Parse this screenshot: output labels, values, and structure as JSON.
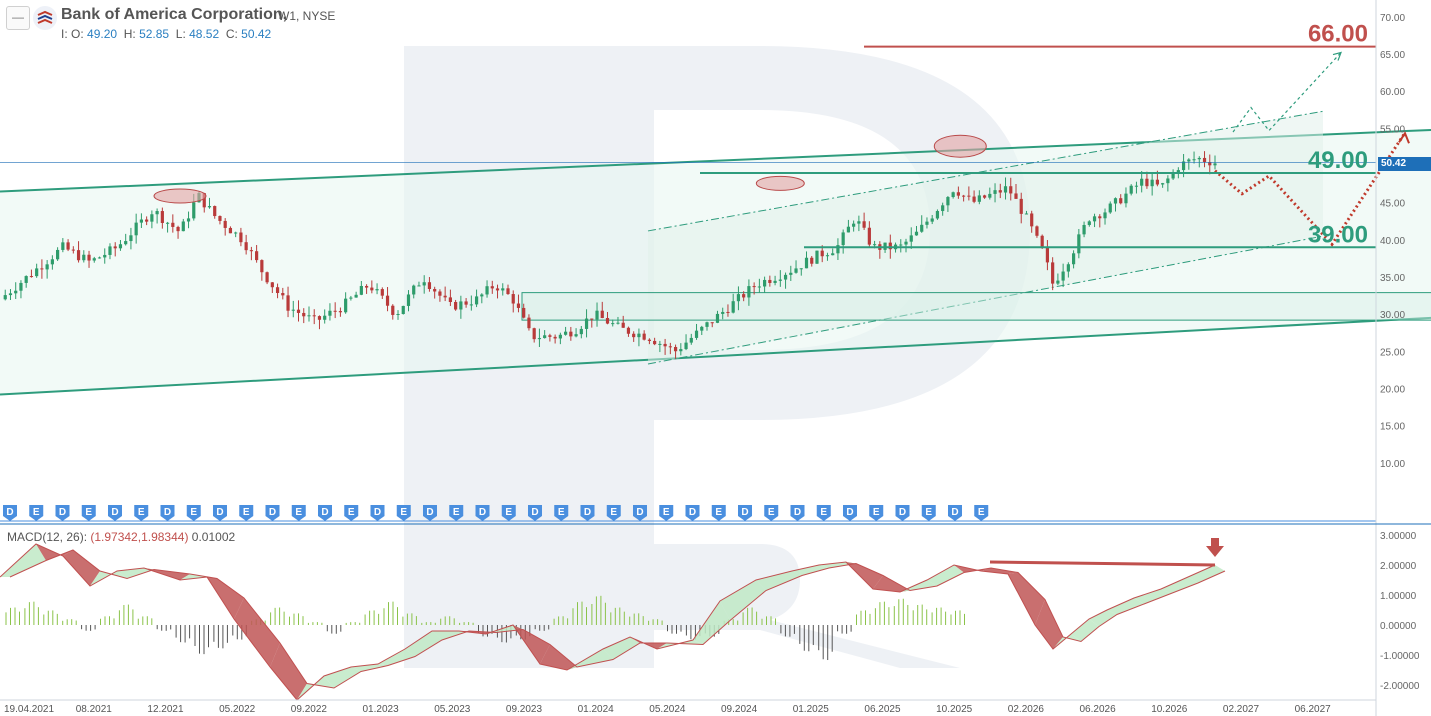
{
  "header": {
    "title": "Bank of America Corporation,",
    "timeframe_exchange": "W1, NYSE",
    "ohlc": {
      "o_label": "I: O:",
      "o": "49.20",
      "h_label": "H:",
      "h": "52.85",
      "l_label": "L:",
      "l": "48.52",
      "c_label": "C:",
      "c": "50.42"
    },
    "menu_icon": "minus-icon",
    "logo_icon": "bank-of-america-flag-icon"
  },
  "colors": {
    "up": "#2e9c6b",
    "down": "#b93a3a",
    "channel": "#2e9c7d",
    "resistance": "#c0504d",
    "level_text": "#2e9c7d",
    "last_price_tag": "#1e6fb8",
    "macd_up_fill": "#bfe9c6",
    "macd_down_fill": "#c05656",
    "event_marker": "#4a8fdf"
  },
  "chart_data": [
    {
      "type": "candlestick",
      "title": "Bank of America Corporation, W1, NYSE",
      "ylim": [
        5,
        72
      ],
      "y_ticks": [
        "70.00",
        "65.00",
        "60.00",
        "55.00",
        "50.00",
        "45.00",
        "40.00",
        "35.00",
        "30.00",
        "25.00",
        "20.00",
        "15.00",
        "10.00"
      ],
      "x_tick_labels": [
        "19.04.2021",
        "08.2021",
        "12.2021",
        "05.2022",
        "09.2022",
        "01.2023",
        "05.2023",
        "09.2023",
        "01.2024",
        "05.2024",
        "09.2024",
        "01.2025",
        "06.2025",
        "10.2025",
        "02.2026",
        "06.2026",
        "10.2026",
        "02.2027",
        "06.2027"
      ],
      "price_path": [
        [
          0,
          32
        ],
        [
          0.04,
          36
        ],
        [
          0.07,
          39
        ],
        [
          0.1,
          37
        ],
        [
          0.13,
          39
        ],
        [
          0.17,
          44
        ],
        [
          0.2,
          41
        ],
        [
          0.22,
          46
        ],
        [
          0.24,
          43
        ],
        [
          0.27,
          40
        ],
        [
          0.29,
          36
        ],
        [
          0.32,
          31
        ],
        [
          0.35,
          29
        ],
        [
          0.38,
          31
        ],
        [
          0.41,
          34
        ],
        [
          0.44,
          30
        ],
        [
          0.47,
          35
        ],
        [
          0.5,
          31
        ],
        [
          0.53,
          32
        ],
        [
          0.55,
          34
        ],
        [
          0.57,
          32
        ],
        [
          0.59,
          27
        ],
        [
          0.62,
          27
        ],
        [
          0.64,
          28
        ],
        [
          0.66,
          30
        ],
        [
          0.69,
          28
        ],
        [
          0.72,
          27
        ],
        [
          0.75,
          25
        ],
        [
          0.78,
          28
        ],
        [
          0.81,
          31
        ],
        [
          0.84,
          34
        ],
        [
          0.88,
          36
        ],
        [
          0.91,
          38
        ],
        [
          0.93,
          39
        ],
        [
          0.95,
          43
        ],
        [
          0.97,
          39
        ],
        [
          1.0,
          39
        ],
        [
          1.02,
          41
        ],
        [
          1.04,
          44
        ],
        [
          1.06,
          47
        ],
        [
          1.08,
          45
        ],
        [
          1.1,
          46
        ],
        [
          1.12,
          47
        ],
        [
          1.14,
          43
        ],
        [
          1.16,
          38
        ],
        [
          1.17,
          34
        ],
        [
          1.19,
          38
        ],
        [
          1.21,
          43
        ],
        [
          1.23,
          44
        ],
        [
          1.25,
          46
        ],
        [
          1.27,
          48
        ],
        [
          1.29,
          47
        ],
        [
          1.31,
          50
        ],
        [
          1.33,
          51
        ],
        [
          1.35,
          50.42
        ]
      ],
      "levels": [
        {
          "label": "66.00",
          "value": 66,
          "role": "resistance"
        },
        {
          "label": "49.00",
          "value": 49,
          "role": "support"
        },
        {
          "label": "39.00",
          "value": 39,
          "role": "support"
        }
      ],
      "last_price": "50.42",
      "channel": {
        "upper": [
          [
            0,
            46.5
          ],
          [
            1.65,
            55.1
          ]
        ],
        "lower": [
          [
            0,
            19.2
          ],
          [
            1.65,
            29.9
          ]
        ]
      },
      "inner_channel": {
        "upper": [
          [
            0.72,
            41.2
          ],
          [
            1.47,
            57.3
          ]
        ],
        "lower": [
          [
            0.72,
            23.3
          ],
          [
            1.47,
            40.5
          ]
        ]
      },
      "range_box": {
        "x_from": 0.58,
        "x_to": 1.66,
        "y_from": 29.2,
        "y_to": 32.9
      },
      "forecast_main": [
        [
          1.35,
          49.3
        ],
        [
          1.38,
          46.2
        ],
        [
          1.41,
          48.6
        ],
        [
          1.48,
          39.4
        ],
        [
          1.56,
          54.2
        ]
      ],
      "forecast_alt": [
        [
          1.37,
          54.5
        ],
        [
          1.39,
          57.8
        ],
        [
          1.41,
          54.7
        ],
        [
          1.49,
          65.2
        ]
      ],
      "event_markers": [
        "D",
        "E",
        "D",
        "E",
        "D",
        "E",
        "D",
        "E",
        "D",
        "E",
        "D",
        "E",
        "D",
        "E",
        "D",
        "E",
        "D",
        "E",
        "D",
        "E",
        "D",
        "E",
        "D",
        "E",
        "D",
        "E",
        "D",
        "E",
        "D",
        "E",
        "D",
        "E",
        "D",
        "E",
        "D",
        "E",
        "D",
        "E"
      ]
    },
    {
      "type": "line",
      "title": "MACD(12, 26)",
      "series_label": "(1.97342,1.98344)",
      "histogram_value": "0.01002",
      "ylim": [
        -2.5,
        3.3
      ],
      "y_ticks": [
        "3.00000",
        "2.00000",
        "1.00000",
        "0.00000",
        "-1.00000",
        "-2.00000"
      ],
      "macd_path": [
        [
          0,
          1.6
        ],
        [
          0.04,
          2.7
        ],
        [
          0.07,
          2.3
        ],
        [
          0.1,
          1.3
        ],
        [
          0.13,
          1.8
        ],
        [
          0.16,
          1.9
        ],
        [
          0.2,
          1.5
        ],
        [
          0.23,
          1.6
        ],
        [
          0.26,
          0.2
        ],
        [
          0.3,
          -1.4
        ],
        [
          0.33,
          -2.5
        ],
        [
          0.36,
          -1.7
        ],
        [
          0.39,
          -1.4
        ],
        [
          0.42,
          -1.3
        ],
        [
          0.45,
          -0.8
        ],
        [
          0.48,
          -0.2
        ],
        [
          0.51,
          -0.2
        ],
        [
          0.54,
          -0.3
        ],
        [
          0.57,
          0.0
        ],
        [
          0.6,
          -1.3
        ],
        [
          0.63,
          -1.5
        ],
        [
          0.67,
          -0.8
        ],
        [
          0.7,
          -0.4
        ],
        [
          0.73,
          -0.8
        ],
        [
          0.77,
          -0.5
        ],
        [
          0.8,
          0.8
        ],
        [
          0.84,
          1.5
        ],
        [
          0.88,
          1.8
        ],
        [
          0.91,
          2.0
        ],
        [
          0.94,
          2.1
        ],
        [
          0.97,
          1.2
        ],
        [
          1.0,
          1.1
        ],
        [
          1.03,
          1.5
        ],
        [
          1.06,
          2.0
        ],
        [
          1.09,
          1.8
        ],
        [
          1.12,
          1.7
        ],
        [
          1.15,
          0.0
        ],
        [
          1.17,
          -0.8
        ],
        [
          1.19,
          -0.3
        ],
        [
          1.21,
          0.2
        ],
        [
          1.23,
          0.5
        ],
        [
          1.26,
          0.9
        ],
        [
          1.29,
          1.2
        ],
        [
          1.32,
          1.6
        ],
        [
          1.35,
          2.0
        ]
      ],
      "histogram": [
        0.6,
        0.8,
        0.5,
        0.2,
        -0.2,
        0.3,
        0.7,
        0.3,
        -0.2,
        -0.6,
        -1.0,
        -0.8,
        -0.5,
        0.2,
        0.6,
        0.4,
        0.1,
        -0.3,
        0.1,
        0.5,
        0.8,
        0.4,
        0.1,
        0.3,
        0.1,
        -0.4,
        -0.6,
        -0.5,
        -0.2,
        0.3,
        0.8,
        1.0,
        0.6,
        0.4,
        0.2,
        -0.3,
        -0.5,
        -0.4,
        0.2,
        0.6,
        0.3,
        -0.4,
        -0.9,
        -1.2,
        -0.3,
        0.5,
        0.8,
        0.9,
        0.7,
        0.6,
        0.5
      ],
      "divergence_line": [
        [
          1.1,
          2.1
        ],
        [
          1.35,
          2.0
        ]
      ],
      "divergence_arrow_icon": "down-arrow-icon"
    }
  ]
}
